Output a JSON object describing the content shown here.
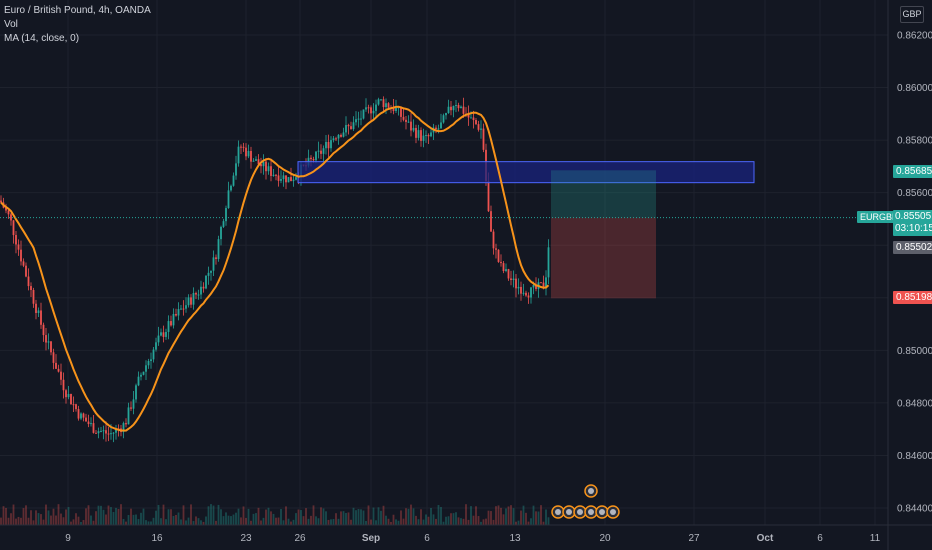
{
  "legend": {
    "title": "Euro / British Pound, 4h, OANDA",
    "vol": "Vol",
    "ma": "MA (14, close, 0)"
  },
  "currency": "GBP",
  "symbol": "EURGBP",
  "last_price": "0.85505",
  "countdown": "03:10:15",
  "tags": {
    "upper": "0.85685",
    "mid": "0.85502",
    "lower": "0.85198"
  },
  "colors": {
    "background": "#131722",
    "up": "#26a69a",
    "down": "#ef5350",
    "ma": "#f7931a",
    "zone": "#1e2a8c",
    "zone_border": "#4c67ff"
  },
  "chart_data": {
    "type": "candlestick",
    "price_axis": [
      "0.86200",
      "0.86000",
      "0.85800",
      "0.85600",
      "0.85400",
      "0.85200",
      "0.85000",
      "0.84800",
      "0.84600",
      "0.84400"
    ],
    "time_axis": [
      "9",
      "16",
      "23",
      "26",
      "Sep",
      "6",
      "13",
      "20",
      "27",
      "Oct",
      "6",
      "11"
    ],
    "ylim": [
      0.8434,
      0.8636
    ],
    "zone": {
      "top": 0.85718,
      "bottom": 0.85638
    },
    "position": {
      "entry": 0.85505,
      "target": 0.85685,
      "stop": 0.85198
    }
  }
}
